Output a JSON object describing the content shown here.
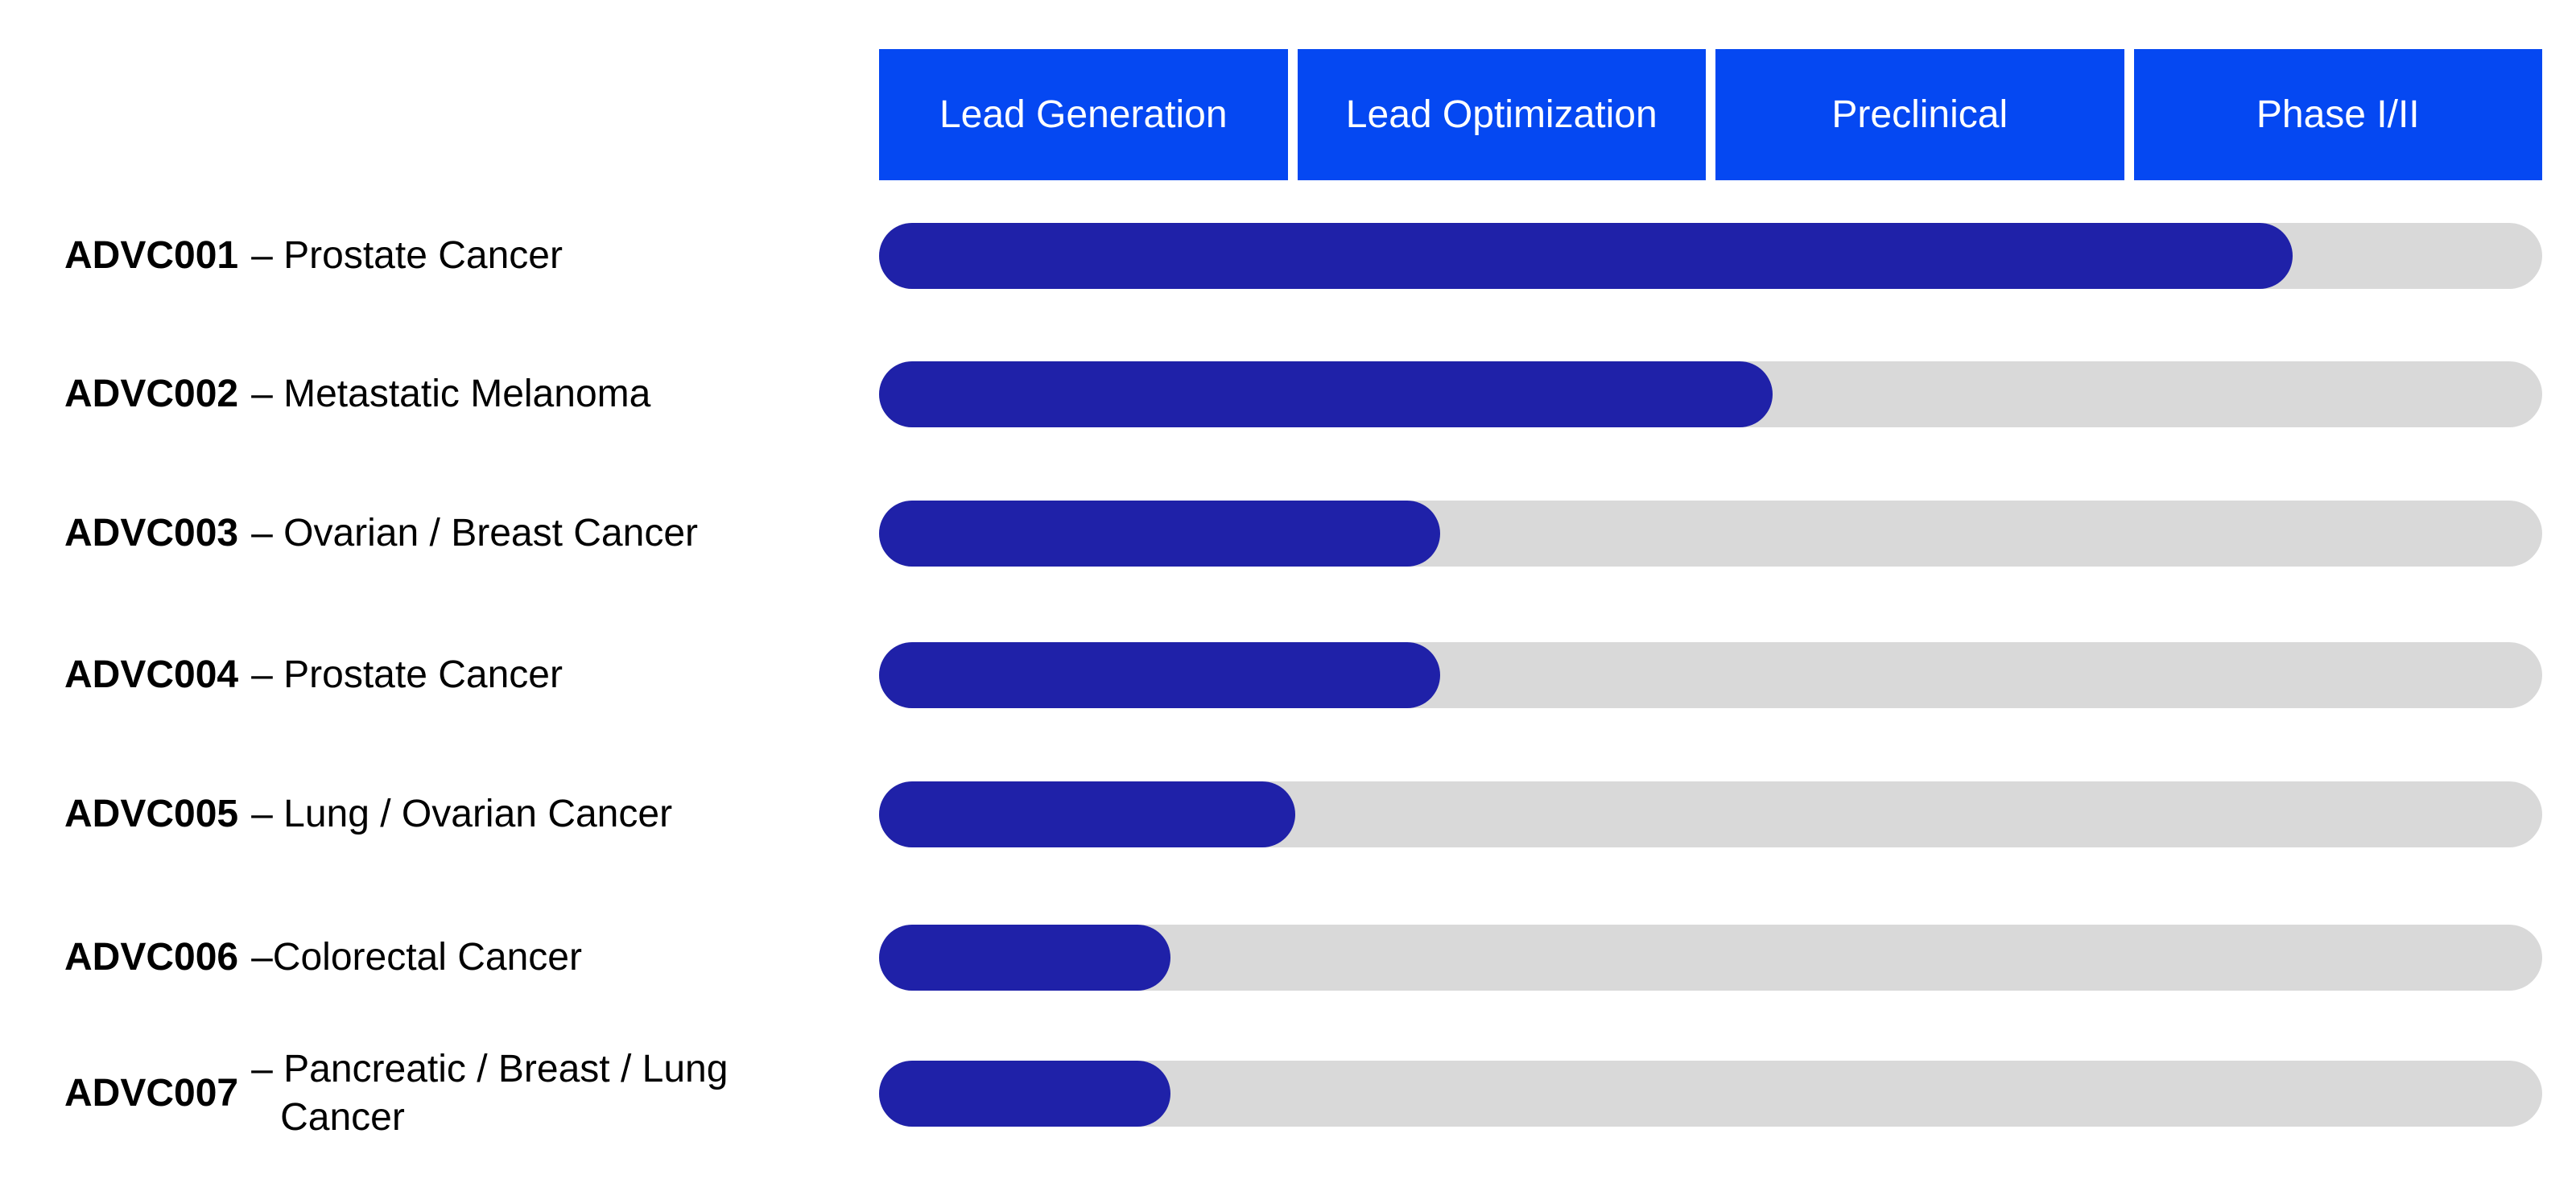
{
  "chart_data": {
    "type": "pipeline",
    "phases": [
      "Lead Generation",
      "Lead Optimization",
      "Preclinical",
      "Phase I/II"
    ],
    "codes": [
      "ADVC001",
      "ADVC002",
      "ADVC003",
      "ADVC004",
      "ADVC005",
      "ADVC006",
      "ADVC007"
    ],
    "indications": [
      "– Prostate Cancer",
      "– Metastatic Melanoma",
      "– Ovarian / Breast Cancer",
      "– Prostate Cancer",
      "– Lung / Ovarian Cancer",
      "–Colorectal Cancer",
      "– Pancreatic / Breast / Lung Cancer"
    ],
    "values": [
      3.4,
      2.15,
      1.35,
      1.35,
      1.0,
      0.7,
      0.7
    ],
    "xlim": [
      0,
      4
    ],
    "color": "#1f21a8",
    "track_color": "#d9d9d9",
    "header_color": "#0548f2"
  }
}
